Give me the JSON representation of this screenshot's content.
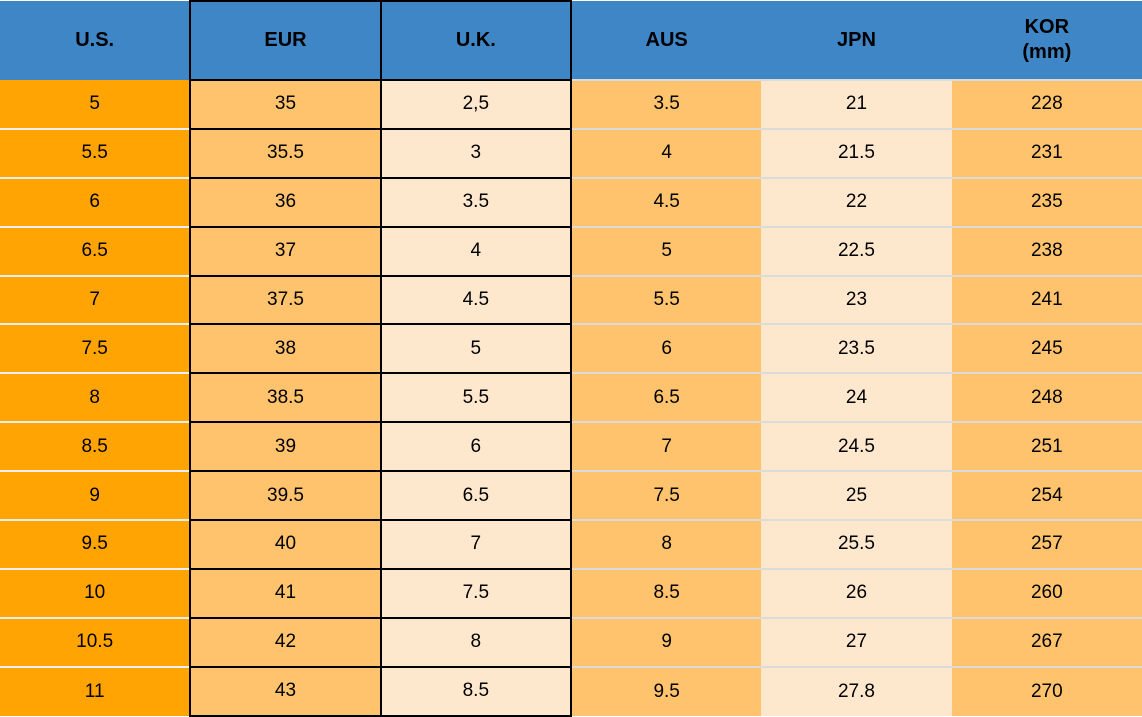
{
  "chart_data": {
    "type": "table",
    "columns": [
      {
        "key": "us",
        "label": "U.S.",
        "sublabel": ""
      },
      {
        "key": "eur",
        "label": "EUR",
        "sublabel": ""
      },
      {
        "key": "uk",
        "label": "U.K.",
        "sublabel": ""
      },
      {
        "key": "aus",
        "label": "AUS",
        "sublabel": ""
      },
      {
        "key": "jpn",
        "label": "JPN",
        "sublabel": ""
      },
      {
        "key": "kor",
        "label": "KOR",
        "sublabel": "(mm)"
      }
    ],
    "rows": [
      [
        "5",
        "35",
        "2,5",
        "3.5",
        "21",
        "228"
      ],
      [
        "5.5",
        "35.5",
        "3",
        "4",
        "21.5",
        "231"
      ],
      [
        "6",
        "36",
        "3.5",
        "4.5",
        "22",
        "235"
      ],
      [
        "6.5",
        "37",
        "4",
        "5",
        "22.5",
        "238"
      ],
      [
        "7",
        "37.5",
        "4.5",
        "5.5",
        "23",
        "241"
      ],
      [
        "7.5",
        "38",
        "5",
        "6",
        "23.5",
        "245"
      ],
      [
        "8",
        "38.5",
        "5.5",
        "6.5",
        "24",
        "248"
      ],
      [
        "8.5",
        "39",
        "6",
        "7",
        "24.5",
        "251"
      ],
      [
        "9",
        "39.5",
        "6.5",
        "7.5",
        "25",
        "254"
      ],
      [
        "9.5",
        "40",
        "7",
        "8",
        "25.5",
        "257"
      ],
      [
        "10",
        "41",
        "7.5",
        "8.5",
        "26",
        "260"
      ],
      [
        "10.5",
        "42",
        "8",
        "9",
        "27",
        "267"
      ],
      [
        "11",
        "43",
        "8.5",
        "9.5",
        "27.8",
        "270"
      ]
    ]
  },
  "colors": {
    "header_blue": "#3E86C6",
    "us_orange": "#FFA402",
    "mid_orange": "#FFC36E",
    "cream": "#FEE8CD",
    "grid_black": "#000000",
    "light_sep_us": "#EFEFEF",
    "light_sep": "#DBDBDB",
    "text": "#000000"
  }
}
